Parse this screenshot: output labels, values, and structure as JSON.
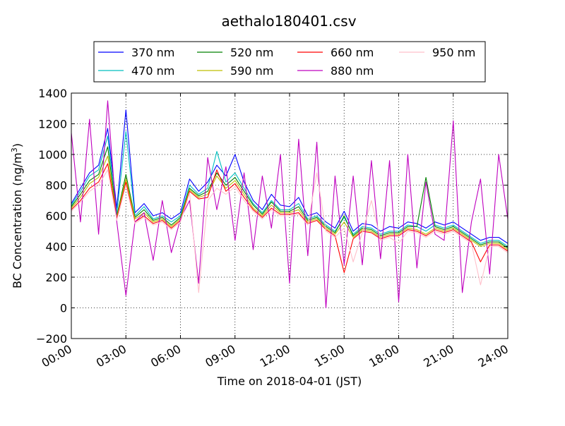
{
  "chart_data": {
    "type": "line",
    "title": "aethalo180401.csv",
    "xlabel": "Time on 2018-04-01 (JST)",
    "ylabel_main": "BC Concentration (ng/m",
    "ylabel_sup": "3",
    "ylabel_end": ")",
    "xlim": [
      0,
      24
    ],
    "ylim": [
      -200,
      1400
    ],
    "x_ticks": [
      {
        "value": 0,
        "label": "00:00"
      },
      {
        "value": 3,
        "label": "03:00"
      },
      {
        "value": 6,
        "label": "06:00"
      },
      {
        "value": 9,
        "label": "09:00"
      },
      {
        "value": 12,
        "label": "12:00"
      },
      {
        "value": 15,
        "label": "15:00"
      },
      {
        "value": 18,
        "label": "18:00"
      },
      {
        "value": 21,
        "label": "21:00"
      },
      {
        "value": 24,
        "label": "24:00"
      }
    ],
    "y_ticks": [
      {
        "value": -200,
        "label": "−200"
      },
      {
        "value": 0,
        "label": "0"
      },
      {
        "value": 200,
        "label": "200"
      },
      {
        "value": 400,
        "label": "400"
      },
      {
        "value": 600,
        "label": "600"
      },
      {
        "value": 800,
        "label": "800"
      },
      {
        "value": 1000,
        "label": "1000"
      },
      {
        "value": 1200,
        "label": "1200"
      },
      {
        "value": 1400,
        "label": "1400"
      }
    ],
    "grid": true,
    "legend_position": "top-center",
    "x": [
      0,
      0.5,
      1,
      1.5,
      2,
      2.5,
      3,
      3.5,
      4,
      4.5,
      5,
      5.5,
      6,
      6.5,
      7,
      7.5,
      8,
      8.5,
      9,
      9.5,
      10,
      10.5,
      11,
      11.5,
      12,
      12.5,
      13,
      13.5,
      14,
      14.5,
      15,
      15.5,
      16,
      16.5,
      17,
      17.5,
      18,
      18.5,
      19,
      19.5,
      20,
      20.5,
      21,
      21.5,
      22,
      22.5,
      23,
      23.5,
      24
    ],
    "series": [
      {
        "name": "370 nm",
        "color": "#0000ff",
        "values": [
          680,
          780,
          880,
          930,
          1170,
          650,
          1290,
          620,
          680,
          600,
          620,
          580,
          620,
          840,
          760,
          820,
          930,
          860,
          1000,
          820,
          700,
          640,
          740,
          670,
          660,
          720,
          600,
          620,
          560,
          520,
          630,
          500,
          550,
          540,
          500,
          530,
          520,
          560,
          550,
          520,
          560,
          540,
          560,
          520,
          480,
          440,
          460,
          460,
          420
        ]
      },
      {
        "name": "470 nm",
        "color": "#00bfbf",
        "values": [
          670,
          760,
          860,
          900,
          1120,
          620,
          1150,
          600,
          660,
          580,
          600,
          560,
          600,
          800,
          740,
          780,
          1020,
          820,
          880,
          780,
          680,
          620,
          700,
          640,
          640,
          680,
          580,
          600,
          540,
          500,
          590,
          480,
          530,
          520,
          480,
          500,
          500,
          540,
          530,
          500,
          540,
          520,
          540,
          500,
          460,
          420,
          440,
          440,
          400
        ]
      },
      {
        "name": "520 nm",
        "color": "#008000",
        "values": [
          660,
          740,
          830,
          870,
          1050,
          600,
          870,
          590,
          640,
          570,
          590,
          540,
          590,
          780,
          730,
          760,
          880,
          800,
          850,
          760,
          670,
          610,
          690,
          630,
          630,
          660,
          570,
          590,
          530,
          490,
          600,
          470,
          520,
          510,
          470,
          490,
          490,
          530,
          530,
          850,
          530,
          510,
          530,
          490,
          450,
          410,
          430,
          430,
          390
        ]
      },
      {
        "name": "590 nm",
        "color": "#bfbf00",
        "values": [
          650,
          720,
          810,
          850,
          990,
          590,
          840,
          580,
          620,
          560,
          580,
          530,
          580,
          770,
          720,
          740,
          860,
          780,
          830,
          740,
          650,
          600,
          670,
          620,
          620,
          640,
          560,
          580,
          520,
          480,
          560,
          460,
          510,
          500,
          460,
          480,
          480,
          520,
          510,
          480,
          520,
          500,
          520,
          480,
          440,
          400,
          420,
          420,
          380
        ]
      },
      {
        "name": "660 nm",
        "color": "#ff0000",
        "values": [
          640,
          700,
          780,
          820,
          940,
          580,
          820,
          560,
          600,
          550,
          570,
          520,
          570,
          760,
          710,
          720,
          900,
          760,
          810,
          720,
          640,
          590,
          650,
          610,
          610,
          620,
          550,
          570,
          510,
          470,
          230,
          450,
          500,
          490,
          450,
          470,
          470,
          510,
          500,
          470,
          510,
          490,
          510,
          470,
          430,
          300,
          410,
          410,
          370
        ]
      },
      {
        "name": "880 nm",
        "color": "#bf00bf",
        "values": [
          1140,
          560,
          1230,
          480,
          1350,
          560,
          80,
          560,
          620,
          310,
          700,
          360,
          580,
          700,
          160,
          980,
          640,
          920,
          440,
          880,
          380,
          860,
          520,
          1000,
          160,
          1100,
          340,
          1080,
          0,
          860,
          280,
          860,
          280,
          960,
          320,
          960,
          40,
          1000,
          260,
          820,
          480,
          440,
          1220,
          100,
          560,
          840,
          220,
          1000,
          580
        ]
      },
      {
        "name": "950 nm",
        "color": "#ffc0cb",
        "values": [
          630,
          690,
          760,
          800,
          900,
          570,
          800,
          550,
          590,
          540,
          560,
          510,
          560,
          750,
          100,
          700,
          780,
          740,
          790,
          700,
          630,
          580,
          640,
          600,
          600,
          610,
          540,
          880,
          500,
          460,
          520,
          300,
          490,
          700,
          440,
          460,
          420,
          500,
          490,
          460,
          500,
          480,
          500,
          460,
          420,
          150,
          400,
          400,
          360
        ]
      }
    ]
  }
}
